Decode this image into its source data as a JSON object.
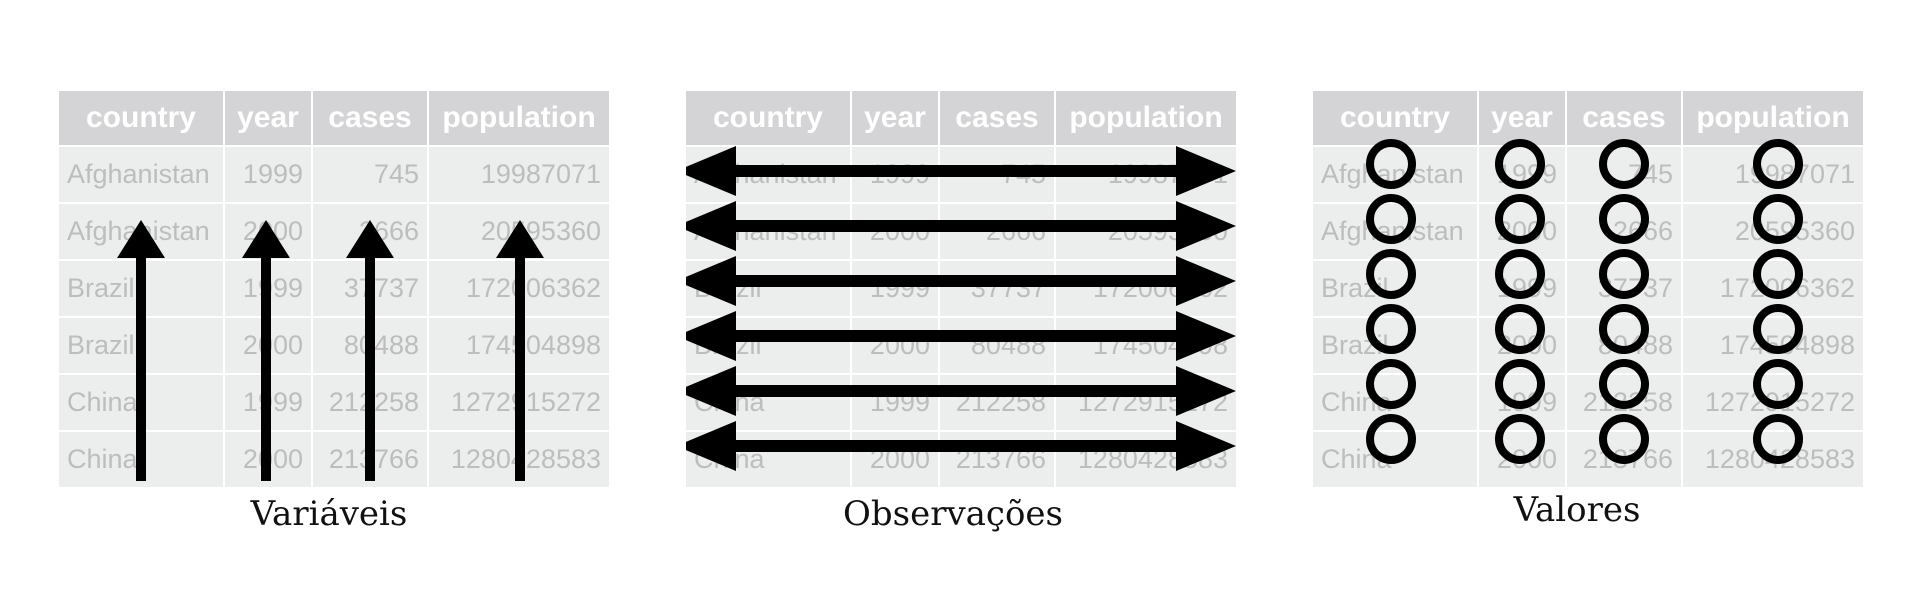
{
  "table": {
    "headers": [
      "country",
      "year",
      "cases",
      "population"
    ],
    "rows": [
      [
        "Afghanistan",
        "1999",
        "745",
        "19987071"
      ],
      [
        "Afghanistan",
        "2000",
        "2666",
        "20595360"
      ],
      [
        "Brazil",
        "1999",
        "37737",
        "172006362"
      ],
      [
        "Brazil",
        "2000",
        "80488",
        "174504898"
      ],
      [
        "China",
        "1999",
        "212258",
        "1272915272"
      ],
      [
        "China",
        "2000",
        "213766",
        "1280428583"
      ]
    ]
  },
  "panels": [
    {
      "caption": "Variáveis",
      "marker": "vertical-double-arrow"
    },
    {
      "caption": "Observações",
      "marker": "horizontal-double-arrow"
    },
    {
      "caption": "Valores",
      "marker": "circle"
    }
  ],
  "colors": {
    "header_bg": "#d4d4d6",
    "cell_bg": "#eceeed",
    "cell_text": "#bcbebd",
    "marker": "#000000"
  }
}
